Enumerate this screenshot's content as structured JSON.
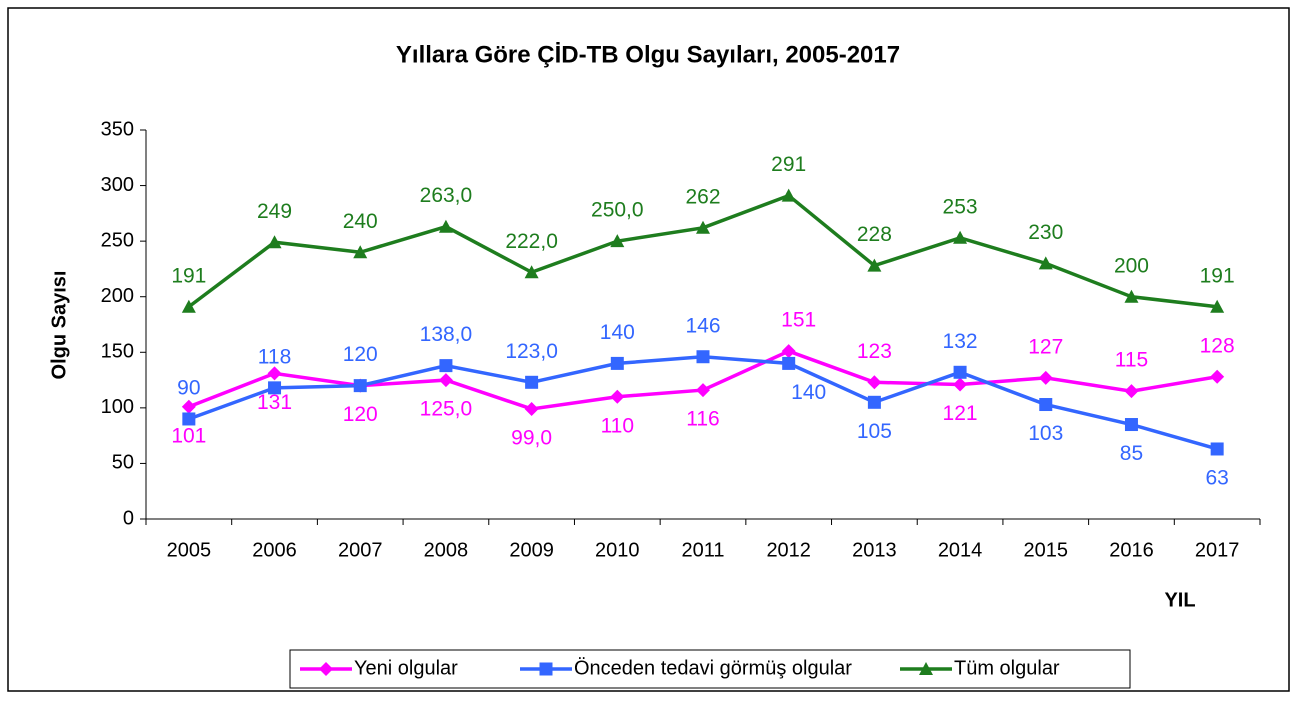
{
  "chart_data": {
    "type": "line",
    "title": "Yıllara Göre ÇİD-TB Olgu Sayıları, 2005-2017",
    "y_label": "Olgu Sayısı",
    "x_label": "YIL",
    "categories": [
      "2005",
      "2006",
      "2007",
      "2008",
      "2009",
      "2010",
      "2011",
      "2012",
      "2013",
      "2014",
      "2015",
      "2016",
      "2017"
    ],
    "series": [
      {
        "name": "Yeni olgular",
        "color": "#ff00ff",
        "values": [
          101,
          131,
          120,
          125,
          99,
          110,
          116,
          151,
          123,
          121,
          127,
          115,
          128
        ],
        "value_labels": [
          "101",
          "131",
          "120",
          "125,0",
          "99,0",
          "110",
          "116",
          "151",
          "123",
          "121",
          "127",
          "115",
          "128"
        ]
      },
      {
        "name": "Önceden tedavi görmüş olgular",
        "color": "#3366ff",
        "values": [
          90,
          118,
          120,
          138,
          123,
          140,
          146,
          140,
          105,
          132,
          103,
          85,
          63
        ],
        "value_labels": [
          "90",
          "118",
          "120",
          "138,0",
          "123,0",
          "140",
          "146",
          "140",
          "105",
          "132",
          "103",
          "85",
          "63"
        ]
      },
      {
        "name": "Tüm olgular",
        "color": "#1e7d1e",
        "values": [
          191,
          249,
          240,
          263,
          222,
          250,
          262,
          291,
          228,
          253,
          230,
          200,
          191
        ],
        "value_labels": [
          "191",
          "249",
          "240",
          "263,0",
          "222,0",
          "250,0",
          "262",
          "291",
          "228",
          "253",
          "230",
          "200",
          "191"
        ]
      }
    ],
    "ylim": [
      0,
      350
    ],
    "yticks": [
      0,
      50,
      100,
      150,
      200,
      250,
      300,
      350
    ],
    "legend": "bottom"
  }
}
